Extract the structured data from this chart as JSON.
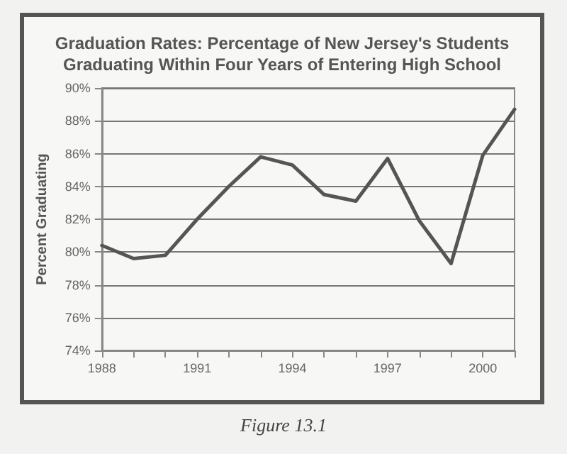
{
  "chart_data": {
    "type": "line",
    "title": "Graduation Rates: Percentage of New Jersey's Students\nGraduating Within Four Years of Entering High School",
    "ylabel": "Percent Graduating",
    "annotations": [
      "Figure 13.1"
    ],
    "x": [
      1988,
      1989,
      1990,
      1991,
      1992,
      1993,
      1994,
      1995,
      1996,
      1997,
      1998,
      1999,
      2000,
      2001
    ],
    "series": [
      {
        "color": "#555555",
        "values": [
          80.4,
          79.6,
          79.8,
          82.0,
          84.0,
          85.8,
          85.3,
          83.5,
          83.1,
          85.7,
          81.9,
          79.3,
          85.9,
          88.7
        ]
      }
    ],
    "xlim": [
      1988,
      2001
    ],
    "xticks": [
      1988,
      {
        "value": 1989,
        "label": null
      },
      {
        "value": 1990,
        "label": null
      },
      1991,
      {
        "value": 1992,
        "label": null
      },
      {
        "value": 1993,
        "label": null
      },
      1994,
      {
        "value": 1995,
        "label": null
      },
      {
        "value": 1996,
        "label": null
      },
      1997,
      {
        "value": 1998,
        "label": null
      },
      {
        "value": 1999,
        "label": null
      },
      2000,
      {
        "value": 2001,
        "label": null
      }
    ],
    "ylim": [
      74,
      90
    ],
    "yticks": [
      {
        "value": 74,
        "label": "74%"
      },
      {
        "value": 76,
        "label": "76%"
      },
      {
        "value": 78,
        "label": "78%"
      },
      {
        "value": 80,
        "label": "80%"
      },
      {
        "value": 82,
        "label": "82%"
      },
      {
        "value": 84,
        "label": "84%"
      },
      {
        "value": 86,
        "label": "86%"
      },
      {
        "value": 88,
        "label": "88%"
      },
      {
        "value": 90,
        "label": "90%"
      }
    ],
    "grid": "y",
    "marker": "none",
    "line_style": "solid"
  }
}
